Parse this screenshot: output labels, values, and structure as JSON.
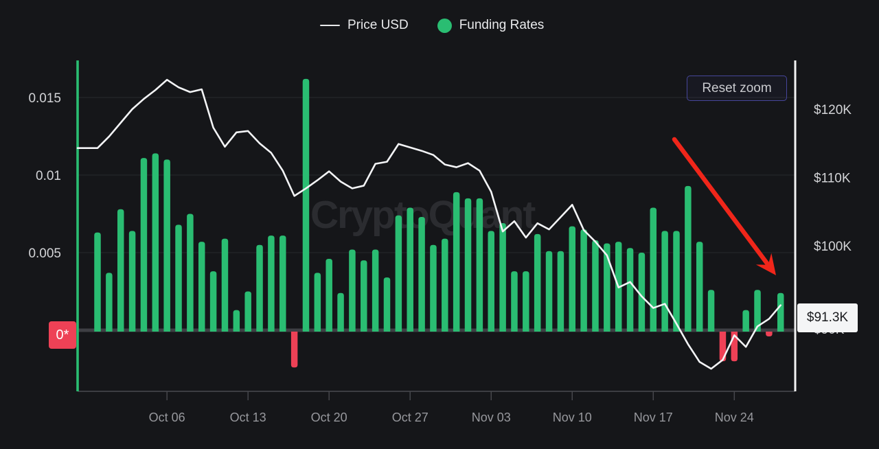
{
  "legend": {
    "items": [
      {
        "label": "Price USD",
        "swatch": "line-dash",
        "color": "#e9eaec"
      },
      {
        "label": "Funding Rates",
        "swatch": "dot",
        "color": "#2abd72"
      }
    ]
  },
  "controls": {
    "reset_zoom_label": "Reset zoom"
  },
  "watermark": "CryptoQuant",
  "badges": {
    "zero_rate_badge": "0*",
    "last_price_badge": "$91.3K"
  },
  "colors": {
    "background": "#151619",
    "bar_positive": "#2abd72",
    "bar_negative": "#ee4156",
    "price_line": "#f3f4f6",
    "left_axis_line": "#2abd72",
    "right_axis_line": "#f2f3f4",
    "gridline": "#222327",
    "zero_band": "#3e3f44",
    "x_axis_line": "#3c3d42",
    "axis_tick_text": "#d3d4d7",
    "x_label_text": "#97989d",
    "arrow": "#f0261a",
    "reset_border": "#46469b"
  },
  "chart_data": {
    "type": "mixed",
    "title": "",
    "grid": "horizontal-faint",
    "legend_position": "top-center",
    "dates": [
      "Sep 30",
      "Oct 01",
      "Oct 02",
      "Oct 03",
      "Oct 04",
      "Oct 05",
      "Oct 06",
      "Oct 07",
      "Oct 08",
      "Oct 09",
      "Oct 10",
      "Oct 11",
      "Oct 12",
      "Oct 13",
      "Oct 14",
      "Oct 15",
      "Oct 16",
      "Oct 17",
      "Oct 18",
      "Oct 19",
      "Oct 20",
      "Oct 21",
      "Oct 22",
      "Oct 23",
      "Oct 24",
      "Oct 25",
      "Oct 26",
      "Oct 27",
      "Oct 28",
      "Oct 29",
      "Oct 30",
      "Oct 31",
      "Nov 01",
      "Nov 02",
      "Nov 03",
      "Nov 04",
      "Nov 05",
      "Nov 06",
      "Nov 07",
      "Nov 08",
      "Nov 09",
      "Nov 10",
      "Nov 11",
      "Nov 12",
      "Nov 13",
      "Nov 14",
      "Nov 15",
      "Nov 16",
      "Nov 17",
      "Nov 18",
      "Nov 19",
      "Nov 20",
      "Nov 21",
      "Nov 22",
      "Nov 23",
      "Nov 24",
      "Nov 25",
      "Nov 26",
      "Nov 27",
      "Nov 28"
    ],
    "series": [
      {
        "name": "Price USD",
        "type": "line",
        "axis": "right",
        "unit": "thousand USD",
        "values": [
          114.3,
          116.0,
          118.0,
          120.0,
          121.5,
          122.8,
          124.3,
          123.2,
          122.5,
          122.9,
          117.3,
          114.5,
          116.6,
          116.8,
          115.0,
          113.6,
          111.0,
          107.3,
          108.4,
          109.6,
          110.9,
          109.4,
          108.4,
          108.8,
          112.0,
          112.3,
          114.9,
          114.4,
          113.9,
          113.3,
          111.9,
          111.5,
          112.1,
          111.0,
          107.9,
          102.1,
          103.6,
          101.2,
          103.3,
          102.4,
          104.2,
          106.0,
          102.3,
          100.6,
          98.6,
          93.9,
          94.7,
          92.6,
          90.9,
          91.5,
          88.6,
          85.6,
          83.0,
          82.0,
          83.3,
          86.9,
          85.2,
          88.2,
          89.3,
          91.3
        ]
      },
      {
        "name": "Funding Rates",
        "type": "bar",
        "axis": "left",
        "values": [
          0.0063,
          0.0037,
          0.0078,
          0.0064,
          0.0111,
          0.0114,
          0.011,
          0.0068,
          0.0075,
          0.0057,
          0.0038,
          0.0059,
          0.0013,
          0.0025,
          0.0055,
          0.0061,
          0.0061,
          -0.0024,
          0.0162,
          0.0037,
          0.0046,
          0.0024,
          0.0052,
          0.0045,
          0.0052,
          0.0034,
          0.0074,
          0.0079,
          0.0073,
          0.0055,
          0.0059,
          0.0089,
          0.0085,
          0.0085,
          0.0064,
          0.0069,
          0.0038,
          0.0038,
          0.0062,
          0.0051,
          0.0051,
          0.0067,
          0.0065,
          0.0058,
          0.0056,
          0.0057,
          0.0053,
          0.005,
          0.0079,
          0.0064,
          0.0064,
          0.0093,
          0.0057,
          0.0026,
          -0.002,
          -0.002,
          0.0013,
          0.0026,
          -0.0004,
          0.0024
        ]
      }
    ],
    "x_tick_labels": [
      "Oct 06",
      "Oct 13",
      "Oct 20",
      "Oct 27",
      "Nov 03",
      "Nov 10",
      "Nov 17",
      "Nov 24"
    ],
    "y_left": {
      "ticks": [
        {
          "label": "0.015",
          "value": 0.015
        },
        {
          "label": "0.01",
          "value": 0.01
        },
        {
          "label": "0.005",
          "value": 0.005
        }
      ],
      "zero_label": "0*",
      "range": [
        -0.004,
        0.0173
      ]
    },
    "y_right": {
      "ticks": [
        {
          "label": "$120K",
          "k": 120
        },
        {
          "label": "$110K",
          "k": 110
        },
        {
          "label": "$100K",
          "k": 100
        },
        {
          "label": "$90K",
          "k": 90
        }
      ],
      "last_price_label": "$91.3K",
      "range_k": [
        79,
        126.5
      ]
    },
    "annotations": [
      {
        "shape": "arrow",
        "meaning": "price-downtrend",
        "color": "#f0261a",
        "x1": 982,
        "y1": 203,
        "x2": 1130,
        "y2": 401
      }
    ]
  }
}
